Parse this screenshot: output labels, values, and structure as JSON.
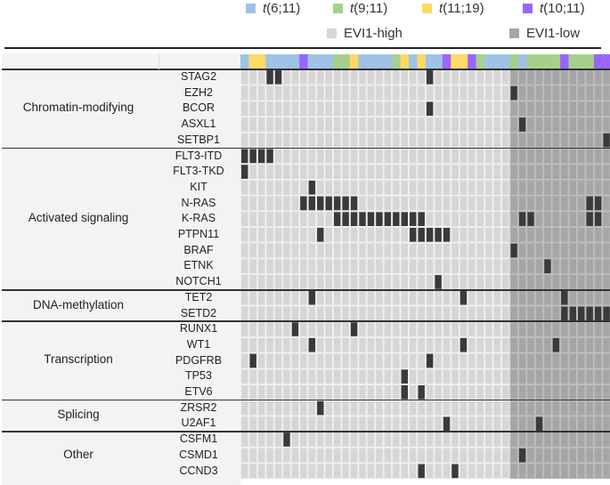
{
  "chart_data": {
    "type": "heatmap",
    "title": "",
    "legend": {
      "translocations": [
        {
          "key": "t611",
          "label_italic": "t",
          "label_rest": "(6;11)",
          "color": "#9fc3e7"
        },
        {
          "key": "t911",
          "label_italic": "t",
          "label_rest": "(9;11)",
          "color": "#a8d08d"
        },
        {
          "key": "t1119",
          "label_italic": "t",
          "label_rest": "(11;19)",
          "color": "#ffd966"
        },
        {
          "key": "t1011",
          "label_italic": "t",
          "label_rest": "(10;11)",
          "color": "#9966ff"
        }
      ],
      "evi1": [
        {
          "key": "high",
          "label": "EVI1-high",
          "color": "#d6d6d6"
        },
        {
          "key": "low",
          "label": "EVI1-low",
          "color": "#a6a6a6"
        }
      ]
    },
    "n_samples": 44,
    "evi1_high_count": 32,
    "sample_translocation": [
      "t611",
      "t1119",
      "t1119",
      "t611",
      "t611",
      "t611",
      "t611",
      "t1011",
      "t611",
      "t611",
      "t611",
      "t911",
      "t911",
      "t1119",
      "t611",
      "t611",
      "t611",
      "t611",
      "t911",
      "t1119",
      "t611",
      "t1119",
      "t611",
      "t611",
      "t1011",
      "t1119",
      "t1119",
      "t1011",
      "t911",
      "t611",
      "t611",
      "t611",
      "t911",
      "t611",
      "t911",
      "t911",
      "t911",
      "t911",
      "t1011",
      "t911",
      "t911",
      "t911",
      "t1011",
      "t1011"
    ],
    "mutation_color": "#3a3a3a",
    "categories": [
      {
        "name": "Chromatin-modifying",
        "genes": [
          {
            "gene": "STAG2",
            "mutated": [
              3,
              4,
              22
            ]
          },
          {
            "gene": "EZH2",
            "mutated": [
              32
            ]
          },
          {
            "gene": "BCOR",
            "mutated": [
              22
            ]
          },
          {
            "gene": "ASXL1",
            "mutated": [
              33
            ]
          },
          {
            "gene": "SETBP1",
            "mutated": [
              43
            ]
          }
        ]
      },
      {
        "name": "Activated signaling",
        "genes": [
          {
            "gene": "FLT3-ITD",
            "mutated": [
              0,
              1,
              2,
              3
            ]
          },
          {
            "gene": "FLT3-TKD",
            "mutated": [
              0
            ]
          },
          {
            "gene": "KIT",
            "mutated": [
              8
            ]
          },
          {
            "gene": "N-RAS",
            "mutated": [
              7,
              8,
              9,
              10,
              11,
              12,
              13,
              41,
              42
            ]
          },
          {
            "gene": "K-RAS",
            "mutated": [
              11,
              12,
              13,
              14,
              15,
              16,
              17,
              18,
              19,
              20,
              21,
              33,
              34,
              41,
              42
            ]
          },
          {
            "gene": "PTPN11",
            "mutated": [
              9,
              20,
              21,
              22,
              23,
              24
            ]
          },
          {
            "gene": "BRAF",
            "mutated": [
              32
            ]
          },
          {
            "gene": "ETNK",
            "mutated": [
              36
            ]
          },
          {
            "gene": "NOTCH1",
            "mutated": [
              23
            ]
          }
        ]
      },
      {
        "name": "DNA-methylation",
        "genes": [
          {
            "gene": "TET2",
            "mutated": [
              8,
              26,
              38
            ]
          },
          {
            "gene": "SETD2",
            "mutated": [
              38,
              39,
              40,
              41,
              42,
              43
            ]
          }
        ]
      },
      {
        "name": "Transcription",
        "genes": [
          {
            "gene": "RUNX1",
            "mutated": [
              6,
              13
            ]
          },
          {
            "gene": "WT1",
            "mutated": [
              8,
              26,
              37
            ]
          },
          {
            "gene": "PDGFRB",
            "mutated": [
              1,
              22
            ]
          },
          {
            "gene": "TP53",
            "mutated": [
              19
            ]
          },
          {
            "gene": "ETV6",
            "mutated": [
              19,
              21
            ]
          }
        ]
      },
      {
        "name": "Splicing",
        "genes": [
          {
            "gene": "ZRSR2",
            "mutated": [
              9
            ]
          },
          {
            "gene": "U2AF1",
            "mutated": [
              24,
              35
            ]
          }
        ]
      },
      {
        "name": "Other",
        "genes": [
          {
            "gene": "CSFM1",
            "mutated": [
              5
            ]
          },
          {
            "gene": "CSMD1",
            "mutated": [
              33
            ]
          },
          {
            "gene": "CCND3",
            "mutated": [
              21,
              25
            ]
          }
        ]
      }
    ]
  }
}
